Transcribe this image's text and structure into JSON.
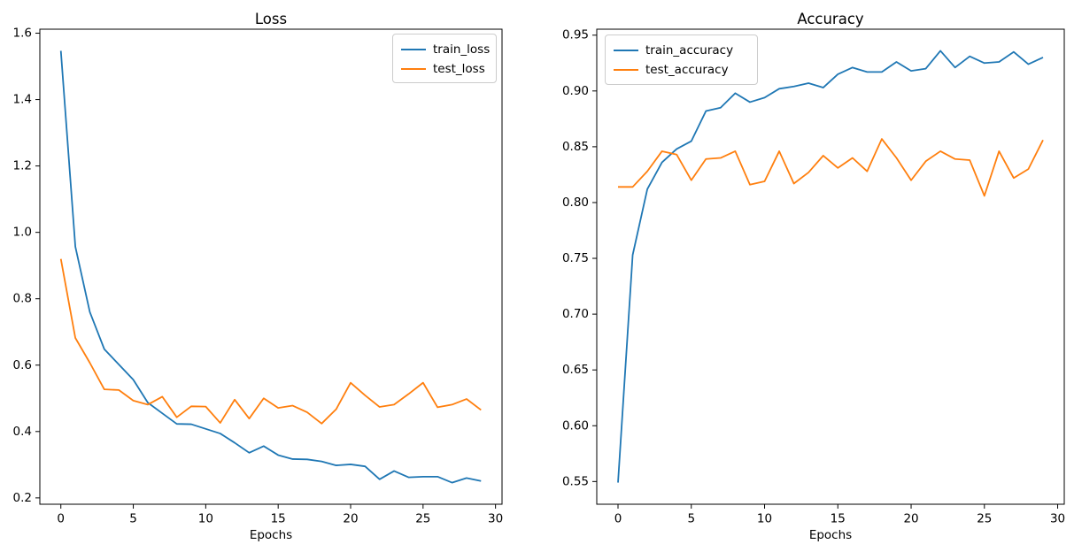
{
  "figure": {
    "background": "#ffffff",
    "spine_color": "#000000",
    "text_color": "#000000"
  },
  "chart_data": [
    {
      "type": "line",
      "title": "Loss",
      "xlabel": "Epochs",
      "ylabel": "",
      "grid": false,
      "legend_position": "top-right",
      "x": [
        0,
        1,
        2,
        3,
        4,
        5,
        6,
        7,
        8,
        9,
        10,
        11,
        12,
        13,
        14,
        15,
        16,
        17,
        18,
        19,
        20,
        21,
        22,
        23,
        24,
        25,
        26,
        27,
        28,
        29
      ],
      "xticks": [
        0,
        5,
        10,
        15,
        20,
        25,
        30
      ],
      "xticklabels": [
        "0",
        "5",
        "10",
        "15",
        "20",
        "25",
        "30"
      ],
      "yticks": [
        0.2,
        0.4,
        0.6,
        0.8,
        1.0,
        1.2,
        1.4,
        1.6
      ],
      "yticklabels": [
        "0.2",
        "0.4",
        "0.6",
        "0.8",
        "1.0",
        "1.2",
        "1.4",
        "1.6"
      ],
      "series": [
        {
          "name": "train_loss",
          "color": "#1f77b4",
          "values": [
            1.547,
            0.957,
            0.76,
            0.648,
            0.602,
            0.556,
            0.487,
            0.455,
            0.423,
            0.422,
            0.408,
            0.394,
            0.366,
            0.336,
            0.356,
            0.329,
            0.317,
            0.316,
            0.31,
            0.298,
            0.301,
            0.295,
            0.256,
            0.281,
            0.262,
            0.264,
            0.264,
            0.246,
            0.26,
            0.251
          ]
        },
        {
          "name": "test_loss",
          "color": "#ff7f0e",
          "values": [
            0.92,
            0.682,
            0.607,
            0.527,
            0.525,
            0.493,
            0.481,
            0.505,
            0.443,
            0.476,
            0.475,
            0.426,
            0.496,
            0.439,
            0.5,
            0.471,
            0.478,
            0.458,
            0.424,
            0.467,
            0.547,
            0.509,
            0.474,
            0.481,
            0.513,
            0.547,
            0.473,
            0.481,
            0.498,
            0.465
          ]
        }
      ]
    },
    {
      "type": "line",
      "title": "Accuracy",
      "xlabel": "Epochs",
      "ylabel": "",
      "grid": false,
      "legend_position": "top-left",
      "x": [
        0,
        1,
        2,
        3,
        4,
        5,
        6,
        7,
        8,
        9,
        10,
        11,
        12,
        13,
        14,
        15,
        16,
        17,
        18,
        19,
        20,
        21,
        22,
        23,
        24,
        25,
        26,
        27,
        28,
        29
      ],
      "xticks": [
        0,
        5,
        10,
        15,
        20,
        25,
        30
      ],
      "xticklabels": [
        "0",
        "5",
        "10",
        "15",
        "20",
        "25",
        "30"
      ],
      "yticks": [
        0.55,
        0.6,
        0.65,
        0.7,
        0.75,
        0.8,
        0.85,
        0.9,
        0.95
      ],
      "yticklabels": [
        "0.55",
        "0.60",
        "0.65",
        "0.70",
        "0.75",
        "0.80",
        "0.85",
        "0.90",
        "0.95"
      ],
      "series": [
        {
          "name": "train_accuracy",
          "color": "#1f77b4",
          "values": [
            0.549,
            0.753,
            0.812,
            0.836,
            0.848,
            0.855,
            0.882,
            0.885,
            0.898,
            0.89,
            0.894,
            0.902,
            0.904,
            0.907,
            0.903,
            0.915,
            0.921,
            0.917,
            0.917,
            0.926,
            0.918,
            0.92,
            0.936,
            0.921,
            0.931,
            0.925,
            0.926,
            0.935,
            0.924,
            0.93
          ]
        },
        {
          "name": "test_accuracy",
          "color": "#ff7f0e",
          "values": [
            0.814,
            0.814,
            0.828,
            0.846,
            0.843,
            0.82,
            0.839,
            0.84,
            0.846,
            0.816,
            0.819,
            0.846,
            0.817,
            0.827,
            0.842,
            0.831,
            0.84,
            0.828,
            0.857,
            0.84,
            0.82,
            0.837,
            0.846,
            0.839,
            0.838,
            0.806,
            0.846,
            0.822,
            0.83,
            0.856
          ]
        }
      ]
    }
  ]
}
